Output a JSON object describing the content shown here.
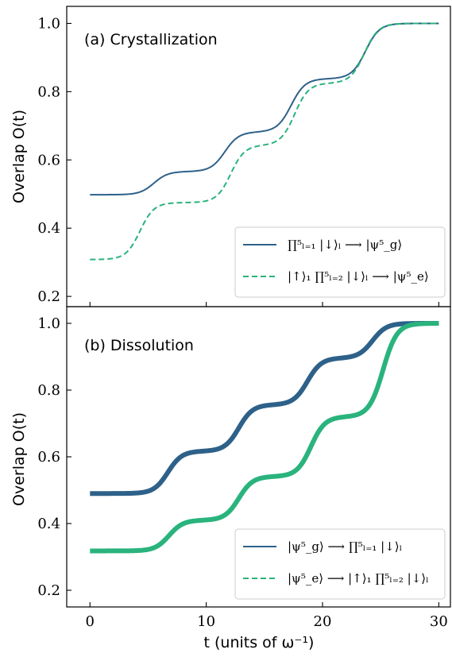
{
  "chart_data": [
    {
      "type": "line",
      "title": "(a) Crystallization",
      "ylabel": "Overlap O(t)",
      "xlabel": "",
      "xlim": [
        -2,
        31
      ],
      "ylim": [
        0.17,
        1.05
      ],
      "x_ticks": [
        0,
        10,
        20,
        30
      ],
      "y_ticks": [
        0.2,
        0.4,
        0.6,
        0.8,
        1.0
      ],
      "y_tick_labels": [
        "0.2",
        "0.4",
        "0.6",
        "0.8",
        "1.0"
      ],
      "grid": false,
      "legend_position": "lower-right",
      "series": [
        {
          "name": "∏⁵ₗ₌₁ |↓⟩ₗ ⟶ |ψ⁵_g⟩",
          "style": "solid",
          "color": "#2e6189",
          "thick": false,
          "steps": [
            {
              "t": 5.5,
              "v": 0.566
            },
            {
              "t": 11.6,
              "v": 0.682
            },
            {
              "t": 17.3,
              "v": 0.838
            },
            {
              "t": 23.7,
              "v": 1.0
            }
          ],
          "start": 0.498,
          "widths": [
            0.6,
            0.6,
            0.6,
            0.6
          ]
        },
        {
          "name": "|↑⟩₁ ∏⁵ₗ₌₂ |↓⟩ₗ ⟶ |ψ⁵_e⟩",
          "style": "dashed",
          "color": "#2ab37d",
          "thick": false,
          "steps": [
            {
              "t": 4.3,
              "v": 0.475
            },
            {
              "t": 12.1,
              "v": 0.643
            },
            {
              "t": 17.6,
              "v": 0.825
            },
            {
              "t": 23.6,
              "v": 1.0
            }
          ],
          "start": 0.308,
          "widths": [
            0.6,
            0.6,
            0.6,
            0.6
          ]
        }
      ]
    },
    {
      "type": "line",
      "title": "(b) Dissolution",
      "ylabel": "Overlap O(t)",
      "xlabel": "t (units of ω⁻¹)",
      "xlim": [
        -2,
        31
      ],
      "ylim": [
        0.15,
        1.05
      ],
      "x_ticks": [
        0,
        10,
        20,
        30
      ],
      "x_tick_labels": [
        "0",
        "10",
        "20",
        "30"
      ],
      "y_ticks": [
        0.2,
        0.4,
        0.6,
        0.8,
        1.0
      ],
      "y_tick_labels": [
        "0.2",
        "0.4",
        "0.6",
        "0.8",
        "1.0"
      ],
      "grid": false,
      "legend_position": "lower-right",
      "series": [
        {
          "name": "|ψ⁵_g⟩ ⟶ ∏⁵ₗ₌₁ |↓⟩ₗ",
          "style": "solid",
          "color": "#2e6189",
          "thick": true,
          "steps": [
            {
              "t": 6.7,
              "v": 0.617
            },
            {
              "t": 12.8,
              "v": 0.756
            },
            {
              "t": 18.7,
              "v": 0.896
            },
            {
              "t": 24.3,
              "v": 1.0
            }
          ],
          "start": 0.49,
          "widths": [
            0.6,
            0.6,
            0.6,
            0.6
          ]
        },
        {
          "name": "|ψ⁵_e⟩ ⟶ |↑⟩₁ ∏⁵ₗ₌₂ |↓⟩ₗ",
          "style": "dashed",
          "color": "#2ab37d",
          "thick": true,
          "steps": [
            {
              "t": 6.8,
              "v": 0.41
            },
            {
              "t": 12.8,
              "v": 0.541
            },
            {
              "t": 19.0,
              "v": 0.72
            },
            {
              "t": 25.2,
              "v": 1.0
            }
          ],
          "start": 0.318,
          "widths": [
            0.6,
            0.6,
            0.6,
            0.6
          ]
        }
      ]
    }
  ]
}
